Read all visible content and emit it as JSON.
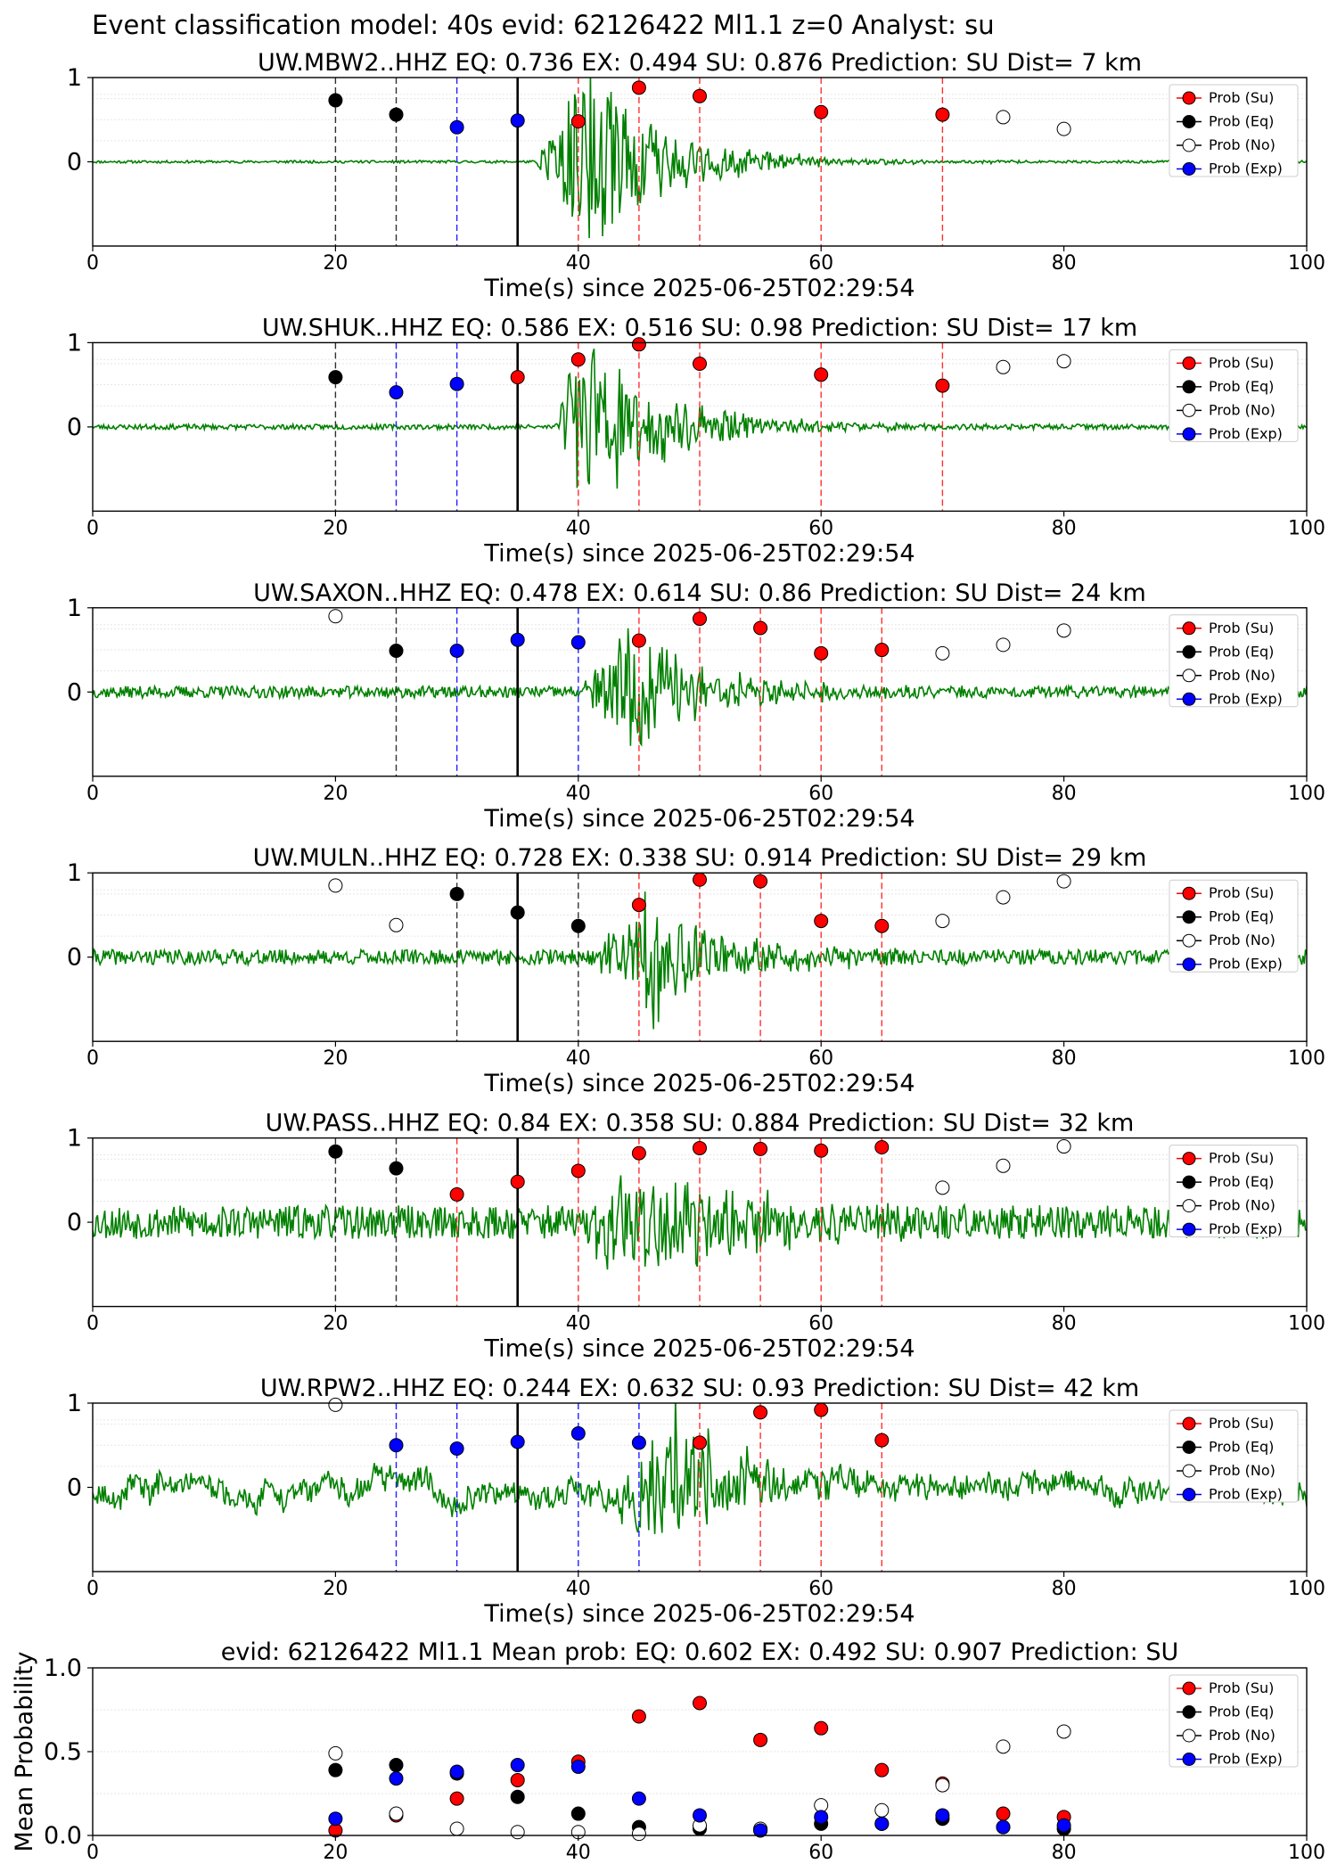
{
  "figure": {
    "suptitle": "Event classification model: 40s evid: 62126422 Ml1.1 z=0 Analyst: su"
  },
  "legend_labels": [
    "Prob (Su)",
    "Prob (Eq)",
    "Prob (No)",
    "Prob (Exp)"
  ],
  "colors": {
    "su": "#ff0000",
    "eq": "#000000",
    "no": "#ffffff",
    "exp": "#0000ff",
    "trace": "#008000",
    "vline_su": "#ff3030",
    "vline_eq": "#303030",
    "vline_exp": "#2020ff"
  },
  "chart_data": [
    {
      "type": "scatter",
      "title": "UW.MBW2..HHZ   EQ: 0.736  EX: 0.494  SU: 0.876   Prediction: SU    Dist= 7 km",
      "xlabel": "Time(s) since 2025-06-25T02:29:54",
      "xlim": [
        0,
        100
      ],
      "ylim": [
        -1,
        1
      ],
      "xticks": [
        "0",
        "20",
        "40",
        "60",
        "80",
        "100"
      ],
      "yticks": [
        "1",
        "0"
      ],
      "reference_line_x": 35,
      "waveform": {
        "onset": 36.5,
        "peak_time": 40,
        "envelope_amp": 1.1,
        "duration": 15,
        "noise_amp": 0.015,
        "seed": 11
      },
      "windows": [
        {
          "t": 20,
          "cls": "eq",
          "p": 0.73
        },
        {
          "t": 25,
          "cls": "eq",
          "p": 0.56
        },
        {
          "t": 30,
          "cls": "exp",
          "p": 0.41
        },
        {
          "t": 35,
          "cls": "exp",
          "p": 0.49
        },
        {
          "t": 40,
          "cls": "su",
          "p": 0.48
        },
        {
          "t": 45,
          "cls": "su",
          "p": 0.88
        },
        {
          "t": 50,
          "cls": "su",
          "p": 0.78
        },
        {
          "t": 60,
          "cls": "su",
          "p": 0.59
        },
        {
          "t": 70,
          "cls": "su",
          "p": 0.56
        },
        {
          "t": 75,
          "cls": "no",
          "p": 0.53
        },
        {
          "t": 80,
          "cls": "no",
          "p": 0.39
        }
      ]
    },
    {
      "type": "scatter",
      "title": "UW.SHUK..HHZ   EQ: 0.586  EX: 0.516  SU: 0.98   Prediction: SU    Dist= 17 km",
      "xlabel": "Time(s) since 2025-06-25T02:29:54",
      "xlim": [
        0,
        100
      ],
      "ylim": [
        -1,
        1
      ],
      "xticks": [
        "0",
        "20",
        "40",
        "60",
        "80",
        "100"
      ],
      "yticks": [
        "1",
        "0"
      ],
      "reference_line_x": 35,
      "waveform": {
        "onset": 38,
        "peak_time": 40,
        "envelope_amp": 1.0,
        "duration": 16,
        "noise_amp": 0.03,
        "seed": 23
      },
      "windows": [
        {
          "t": 20,
          "cls": "eq",
          "p": 0.59
        },
        {
          "t": 25,
          "cls": "exp",
          "p": 0.41
        },
        {
          "t": 30,
          "cls": "exp",
          "p": 0.51
        },
        {
          "t": 35,
          "cls": "su",
          "p": 0.59
        },
        {
          "t": 40,
          "cls": "su",
          "p": 0.8
        },
        {
          "t": 45,
          "cls": "su",
          "p": 0.98
        },
        {
          "t": 50,
          "cls": "su",
          "p": 0.75
        },
        {
          "t": 60,
          "cls": "su",
          "p": 0.62
        },
        {
          "t": 70,
          "cls": "su",
          "p": 0.49
        },
        {
          "t": 75,
          "cls": "no",
          "p": 0.71
        },
        {
          "t": 80,
          "cls": "no",
          "p": 0.78
        }
      ]
    },
    {
      "type": "scatter",
      "title": "UW.SAXON..HHZ   EQ: 0.478  EX: 0.614  SU: 0.86   Prediction: SU    Dist= 24 km",
      "xlabel": "Time(s) since 2025-06-25T02:29:54",
      "xlim": [
        0,
        100
      ],
      "ylim": [
        -1,
        1
      ],
      "xticks": [
        "0",
        "20",
        "40",
        "60",
        "80",
        "100"
      ],
      "yticks": [
        "1",
        "0"
      ],
      "reference_line_x": 35,
      "waveform": {
        "onset": 40,
        "peak_time": 44,
        "envelope_amp": 0.75,
        "duration": 14,
        "noise_amp": 0.07,
        "seed": 37
      },
      "windows": [
        {
          "t": 20,
          "cls": "no",
          "p": 0.9
        },
        {
          "t": 25,
          "cls": "eq",
          "p": 0.49
        },
        {
          "t": 30,
          "cls": "exp",
          "p": 0.49
        },
        {
          "t": 35,
          "cls": "exp",
          "p": 0.62
        },
        {
          "t": 40,
          "cls": "exp",
          "p": 0.59
        },
        {
          "t": 45,
          "cls": "su",
          "p": 0.61
        },
        {
          "t": 50,
          "cls": "su",
          "p": 0.87
        },
        {
          "t": 55,
          "cls": "su",
          "p": 0.76
        },
        {
          "t": 60,
          "cls": "su",
          "p": 0.46
        },
        {
          "t": 65,
          "cls": "su",
          "p": 0.5
        },
        {
          "t": 70,
          "cls": "no",
          "p": 0.46
        },
        {
          "t": 75,
          "cls": "no",
          "p": 0.56
        },
        {
          "t": 80,
          "cls": "no",
          "p": 0.73
        }
      ]
    },
    {
      "type": "scatter",
      "title": "UW.MULN..HHZ   EQ: 0.728  EX: 0.338  SU: 0.914   Prediction: SU    Dist= 29 km",
      "xlabel": "Time(s) since 2025-06-25T02:29:54",
      "xlim": [
        0,
        100
      ],
      "ylim": [
        -1,
        1
      ],
      "xticks": [
        "0",
        "20",
        "40",
        "60",
        "80",
        "100"
      ],
      "yticks": [
        "1",
        "0"
      ],
      "reference_line_x": 35,
      "waveform": {
        "onset": 41,
        "peak_time": 46,
        "envelope_amp": 0.7,
        "duration": 14,
        "noise_amp": 0.09,
        "seed": 41
      },
      "windows": [
        {
          "t": 20,
          "cls": "no",
          "p": 0.85
        },
        {
          "t": 25,
          "cls": "no",
          "p": 0.38
        },
        {
          "t": 30,
          "cls": "eq",
          "p": 0.75
        },
        {
          "t": 35,
          "cls": "eq",
          "p": 0.53
        },
        {
          "t": 40,
          "cls": "eq",
          "p": 0.37
        },
        {
          "t": 45,
          "cls": "su",
          "p": 0.62
        },
        {
          "t": 50,
          "cls": "su",
          "p": 0.92
        },
        {
          "t": 55,
          "cls": "su",
          "p": 0.9
        },
        {
          "t": 60,
          "cls": "su",
          "p": 0.43
        },
        {
          "t": 65,
          "cls": "su",
          "p": 0.37
        },
        {
          "t": 70,
          "cls": "no",
          "p": 0.43
        },
        {
          "t": 75,
          "cls": "no",
          "p": 0.71
        },
        {
          "t": 80,
          "cls": "no",
          "p": 0.9
        }
      ]
    },
    {
      "type": "scatter",
      "title": "UW.PASS..HHZ   EQ: 0.84  EX: 0.358  SU: 0.884   Prediction: SU    Dist= 32 km",
      "xlabel": "Time(s) since 2025-06-25T02:29:54",
      "xlim": [
        0,
        100
      ],
      "ylim": [
        -1,
        1
      ],
      "xticks": [
        "0",
        "20",
        "40",
        "60",
        "80",
        "100"
      ],
      "yticks": [
        "1",
        "0"
      ],
      "reference_line_x": 35,
      "waveform": {
        "onset": 40,
        "peak_time": 44,
        "envelope_amp": 0.75,
        "duration": 20,
        "noise_amp": 0.2,
        "seed": 53
      },
      "windows": [
        {
          "t": 20,
          "cls": "eq",
          "p": 0.84
        },
        {
          "t": 25,
          "cls": "eq",
          "p": 0.64
        },
        {
          "t": 30,
          "cls": "su",
          "p": 0.33
        },
        {
          "t": 35,
          "cls": "su",
          "p": 0.48
        },
        {
          "t": 40,
          "cls": "su",
          "p": 0.61
        },
        {
          "t": 45,
          "cls": "su",
          "p": 0.82
        },
        {
          "t": 50,
          "cls": "su",
          "p": 0.88
        },
        {
          "t": 55,
          "cls": "su",
          "p": 0.87
        },
        {
          "t": 60,
          "cls": "su",
          "p": 0.85
        },
        {
          "t": 65,
          "cls": "su",
          "p": 0.89
        },
        {
          "t": 70,
          "cls": "no",
          "p": 0.41
        },
        {
          "t": 75,
          "cls": "no",
          "p": 0.67
        },
        {
          "t": 80,
          "cls": "no",
          "p": 0.9
        }
      ]
    },
    {
      "type": "scatter",
      "title": "UW.RPW2..HHZ   EQ: 0.244  EX: 0.632  SU: 0.93   Prediction: SU    Dist= 42 km",
      "xlabel": "Time(s) since 2025-06-25T02:29:54",
      "xlim": [
        0,
        100
      ],
      "ylim": [
        -1,
        1
      ],
      "xticks": [
        "0",
        "20",
        "40",
        "60",
        "80",
        "100"
      ],
      "yticks": [
        "1",
        "0"
      ],
      "reference_line_x": 35,
      "waveform": {
        "onset": 42,
        "peak_time": 48,
        "envelope_amp": 0.8,
        "duration": 14,
        "noise_amp": 0.12,
        "seed": 67,
        "low_freq": true
      },
      "windows": [
        {
          "t": 20,
          "cls": "no",
          "p": 0.98
        },
        {
          "t": 25,
          "cls": "exp",
          "p": 0.5
        },
        {
          "t": 30,
          "cls": "exp",
          "p": 0.46
        },
        {
          "t": 35,
          "cls": "exp",
          "p": 0.54
        },
        {
          "t": 40,
          "cls": "exp",
          "p": 0.64
        },
        {
          "t": 45,
          "cls": "exp",
          "p": 0.53
        },
        {
          "t": 50,
          "cls": "su",
          "p": 0.53
        },
        {
          "t": 55,
          "cls": "su",
          "p": 0.89
        },
        {
          "t": 60,
          "cls": "su",
          "p": 0.92
        },
        {
          "t": 65,
          "cls": "su",
          "p": 0.56
        }
      ]
    },
    {
      "type": "scatter",
      "title": "evid: 62126422  Ml1.1   Mean prob:   EQ: 0.602  EX: 0.492  SU: 0.907   Prediction: SU",
      "ylabel": "Mean Probability",
      "xlim": [
        0,
        100
      ],
      "ylim": [
        0,
        1
      ],
      "xticks": [
        "0",
        "20",
        "40",
        "60",
        "80",
        "100"
      ],
      "yticks": [
        "1.0",
        "0.5",
        "0.0"
      ],
      "series": [
        {
          "name": "Prob (Su)",
          "cls": "su",
          "x": [
            20,
            25,
            30,
            35,
            40,
            45,
            50,
            55,
            60,
            65,
            70,
            75,
            80
          ],
          "y": [
            0.03,
            0.12,
            0.22,
            0.33,
            0.44,
            0.71,
            0.79,
            0.57,
            0.64,
            0.39,
            0.31,
            0.13,
            0.11
          ]
        },
        {
          "name": "Prob (Eq)",
          "cls": "eq",
          "x": [
            20,
            25,
            30,
            35,
            40,
            45,
            50,
            55,
            60,
            65,
            70,
            75,
            80
          ],
          "y": [
            0.39,
            0.42,
            0.37,
            0.23,
            0.13,
            0.05,
            0.04,
            0.03,
            0.07,
            0.07,
            0.1,
            0.05,
            0.04
          ]
        },
        {
          "name": "Prob (No)",
          "cls": "no",
          "x": [
            20,
            25,
            30,
            35,
            40,
            45,
            50,
            55,
            60,
            65,
            70,
            75,
            80
          ],
          "y": [
            0.49,
            0.13,
            0.04,
            0.02,
            0.02,
            0.01,
            0.06,
            0.04,
            0.18,
            0.15,
            0.3,
            0.53,
            0.62
          ]
        },
        {
          "name": "Prob (Exp)",
          "cls": "exp",
          "x": [
            20,
            25,
            30,
            35,
            40,
            45,
            50,
            55,
            60,
            65,
            70,
            75,
            80
          ],
          "y": [
            0.1,
            0.34,
            0.38,
            0.42,
            0.41,
            0.22,
            0.12,
            0.03,
            0.11,
            0.07,
            0.12,
            0.05,
            0.06
          ]
        }
      ]
    }
  ]
}
